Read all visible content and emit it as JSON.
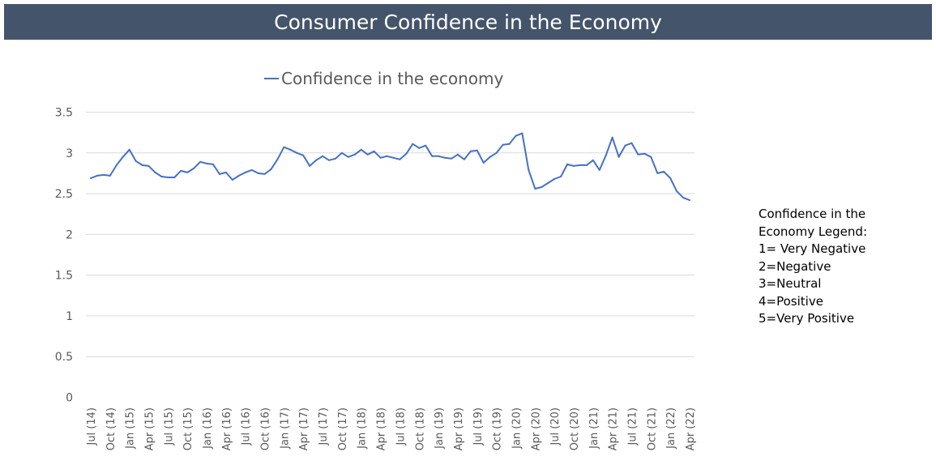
{
  "banner": {
    "title": "Consumer Confidence in the Economy"
  },
  "legend_note": {
    "title": "Confidence in the Economy Legend:",
    "items": [
      "1= Very Negative",
      "2=Negative",
      "3=Neutral",
      "4=Positive",
      "5=Very Positive"
    ]
  },
  "colors": {
    "banner_bg": "#44546a",
    "series_line": "#4472c4",
    "gridline": "#d9d9d9",
    "axis_text": "#595959"
  },
  "chart_data": {
    "type": "line",
    "title": "",
    "xlabel": "",
    "ylabel": "",
    "ylim": [
      0,
      3.5
    ],
    "yticks": [
      0,
      0.5,
      1,
      1.5,
      2,
      2.5,
      3,
      3.5
    ],
    "ytick_labels": [
      "0",
      "0.5",
      "1",
      "1.5",
      "2",
      "2.5",
      "3",
      "3.5"
    ],
    "grid": true,
    "legend": "top",
    "xtick_labels": [
      "Jul (14)",
      "Oct (14)",
      "Jan (15)",
      "Apr (15)",
      "Jul (15)",
      "Oct (15)",
      "Jan (16)",
      "Apr (16)",
      "Jul (16)",
      "Oct (16)",
      "Jan (17)",
      "Apr (17)",
      "Jul (17)",
      "Oct (17)",
      "Jan (18)",
      "Apr (18)",
      "Jul (18)",
      "Oct (18)",
      "Jan (19)",
      "Apr (19)",
      "Jul (19)",
      "Oct (19)",
      "Jan (20)",
      "Apr (20)",
      "Jul (20)",
      "Oct (20)",
      "Jan (21)",
      "Apr (21)",
      "Jul (21)",
      "Oct (21)",
      "Jan (22)",
      "Apr (22)"
    ],
    "series": [
      {
        "name": "Confidence in the economy",
        "values": [
          2.69,
          2.72,
          2.73,
          2.72,
          2.85,
          2.95,
          3.04,
          2.9,
          2.85,
          2.84,
          2.76,
          2.71,
          2.7,
          2.7,
          2.78,
          2.76,
          2.81,
          2.89,
          2.87,
          2.86,
          2.74,
          2.76,
          2.67,
          2.72,
          2.76,
          2.79,
          2.75,
          2.74,
          2.8,
          2.92,
          3.07,
          3.04,
          3.0,
          2.97,
          2.84,
          2.91,
          2.96,
          2.91,
          2.93,
          3.0,
          2.95,
          2.98,
          3.04,
          2.98,
          3.02,
          2.94,
          2.96,
          2.94,
          2.92,
          2.99,
          3.11,
          3.06,
          3.09,
          2.96,
          2.96,
          2.94,
          2.93,
          2.98,
          2.92,
          3.02,
          3.03,
          2.88,
          2.95,
          3.0,
          3.1,
          3.11,
          3.21,
          3.24,
          2.79,
          2.56,
          2.58,
          2.63,
          2.68,
          2.71,
          2.86,
          2.84,
          2.85,
          2.85,
          2.91,
          2.79,
          2.97,
          3.19,
          2.95,
          3.09,
          3.12,
          2.98,
          2.99,
          2.95,
          2.75,
          2.77,
          2.69,
          2.53,
          2.45,
          2.42
        ]
      }
    ]
  }
}
